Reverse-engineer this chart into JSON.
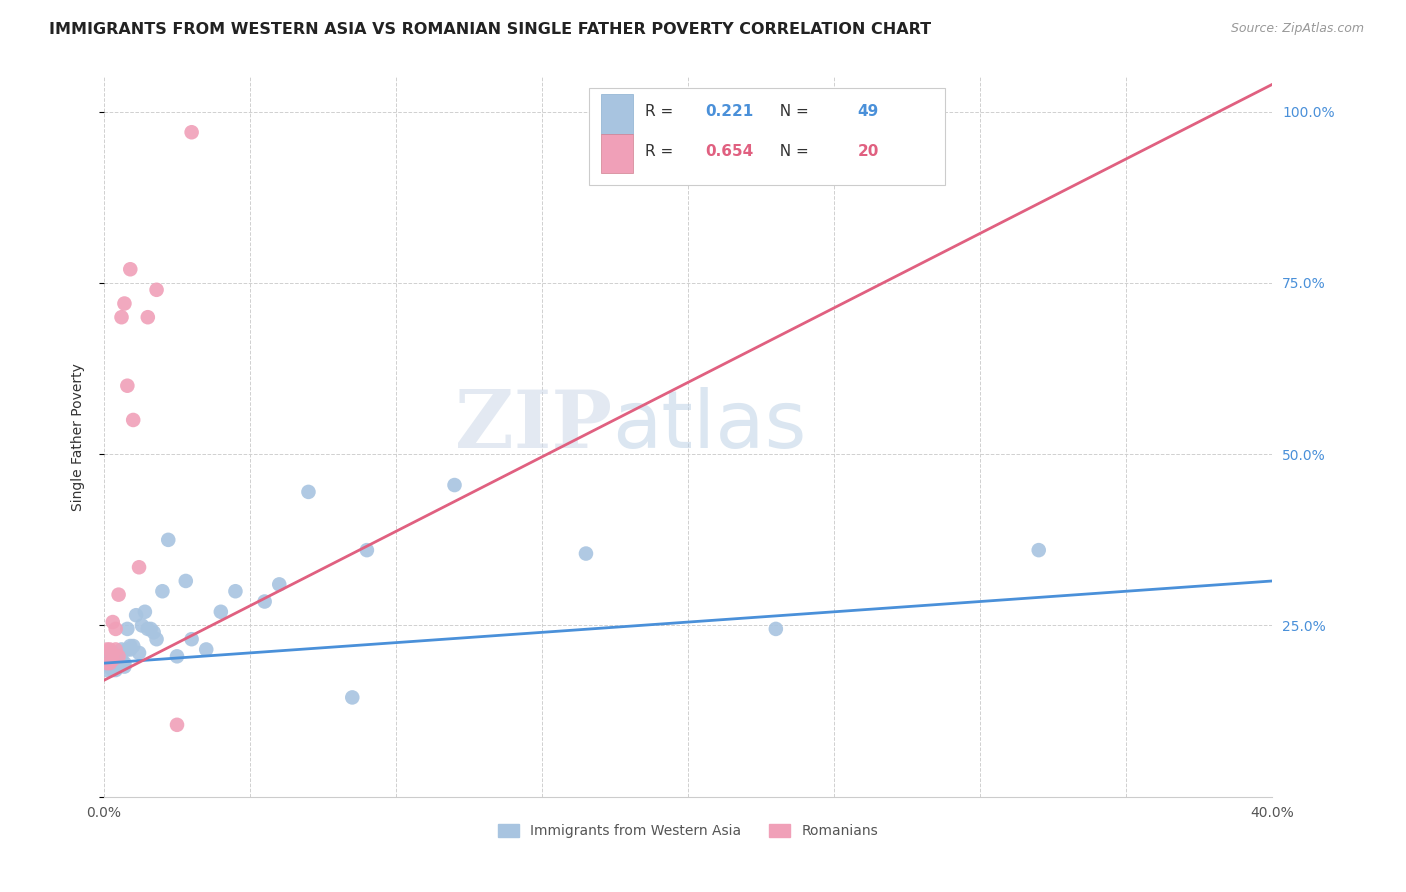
{
  "title": "IMMIGRANTS FROM WESTERN ASIA VS ROMANIAN SINGLE FATHER POVERTY CORRELATION CHART",
  "source": "Source: ZipAtlas.com",
  "ylabel": "Single Father Poverty",
  "xlim": [
    0.0,
    0.4
  ],
  "ylim": [
    0.0,
    1.05
  ],
  "xticks": [
    0.0,
    0.05,
    0.1,
    0.15,
    0.2,
    0.25,
    0.3,
    0.35,
    0.4
  ],
  "xticklabels": [
    "0.0%",
    "",
    "",
    "",
    "",
    "",
    "",
    "",
    "40.0%"
  ],
  "yticks_right": [
    0.25,
    0.5,
    0.75,
    1.0
  ],
  "yticklabels_right": [
    "25.0%",
    "50.0%",
    "75.0%",
    "100.0%"
  ],
  "legend1_label": "Immigrants from Western Asia",
  "legend2_label": "Romanians",
  "r1": 0.221,
  "n1": 49,
  "r2": 0.654,
  "n2": 20,
  "blue_color": "#a8c4e0",
  "pink_color": "#f0a0b8",
  "blue_line_color": "#4a90d9",
  "pink_line_color": "#e06080",
  "blue_scatter_x": [
    0.001,
    0.001,
    0.002,
    0.002,
    0.002,
    0.003,
    0.003,
    0.003,
    0.003,
    0.004,
    0.004,
    0.004,
    0.005,
    0.005,
    0.005,
    0.006,
    0.006,
    0.007,
    0.007,
    0.008,
    0.008,
    0.009,
    0.009,
    0.01,
    0.011,
    0.012,
    0.013,
    0.014,
    0.015,
    0.016,
    0.017,
    0.018,
    0.02,
    0.022,
    0.025,
    0.028,
    0.03,
    0.035,
    0.04,
    0.045,
    0.055,
    0.06,
    0.07,
    0.085,
    0.09,
    0.12,
    0.165,
    0.23,
    0.32
  ],
  "blue_scatter_y": [
    0.195,
    0.185,
    0.205,
    0.19,
    0.2,
    0.195,
    0.185,
    0.2,
    0.21,
    0.185,
    0.195,
    0.205,
    0.195,
    0.19,
    0.2,
    0.215,
    0.2,
    0.19,
    0.195,
    0.215,
    0.245,
    0.215,
    0.22,
    0.22,
    0.265,
    0.21,
    0.25,
    0.27,
    0.245,
    0.245,
    0.24,
    0.23,
    0.3,
    0.375,
    0.205,
    0.315,
    0.23,
    0.215,
    0.27,
    0.3,
    0.285,
    0.31,
    0.445,
    0.145,
    0.36,
    0.455,
    0.355,
    0.245,
    0.36
  ],
  "pink_scatter_x": [
    0.001,
    0.001,
    0.002,
    0.002,
    0.003,
    0.003,
    0.004,
    0.004,
    0.005,
    0.005,
    0.006,
    0.007,
    0.008,
    0.009,
    0.01,
    0.012,
    0.015,
    0.018,
    0.025,
    0.03
  ],
  "pink_scatter_y": [
    0.195,
    0.215,
    0.195,
    0.215,
    0.2,
    0.255,
    0.215,
    0.245,
    0.295,
    0.205,
    0.7,
    0.72,
    0.6,
    0.77,
    0.55,
    0.335,
    0.7,
    0.74,
    0.105,
    0.97
  ],
  "blue_line_x": [
    0.0,
    0.4
  ],
  "blue_line_y": [
    0.195,
    0.315
  ],
  "pink_line_x": [
    0.0,
    0.4
  ],
  "pink_line_y": [
    0.17,
    1.04
  ]
}
